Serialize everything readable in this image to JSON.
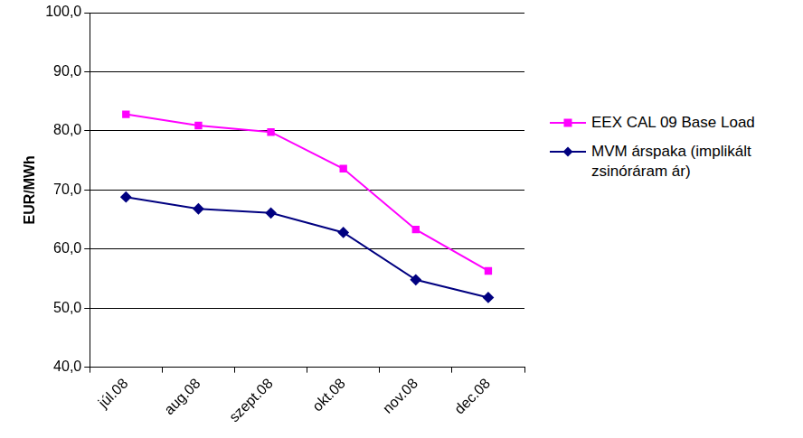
{
  "chart_data": {
    "type": "line",
    "y_label": "EUR/MWh",
    "categories": [
      "júl.08",
      "aug.08",
      "szept.08",
      "okt.08",
      "nov.08",
      "dec.08"
    ],
    "series": [
      {
        "name": "EEX CAL 09 Base Load",
        "color": "#ff00ff",
        "marker": "square",
        "line_style": "solid",
        "values": [
          82.8,
          80.9,
          79.8,
          73.6,
          63.3,
          56.3
        ]
      },
      {
        "name": "MVM árspaka (implikált zsinóráram ár)",
        "color": "#000080",
        "marker": "diamond",
        "line_style": "solid",
        "values": [
          68.8,
          66.8,
          66.1,
          62.8,
          54.8,
          51.8
        ]
      }
    ],
    "ylim": [
      40,
      100
    ],
    "yticks": [
      {
        "value": 40,
        "label": "40,0"
      },
      {
        "value": 50,
        "label": "50,0"
      },
      {
        "value": 60,
        "label": "60,0"
      },
      {
        "value": 70,
        "label": "70,0"
      },
      {
        "value": 80,
        "label": "80,0"
      },
      {
        "value": 90,
        "label": "90,0"
      },
      {
        "value": 100,
        "label": "100,0"
      }
    ],
    "grid": true,
    "legend": "right"
  }
}
